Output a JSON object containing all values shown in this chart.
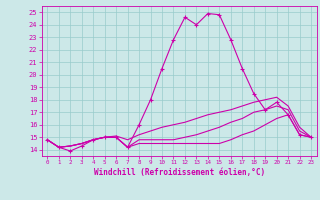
{
  "xlabel": "Windchill (Refroidissement éolien,°C)",
  "bg_color": "#cce8e8",
  "line_color": "#cc00aa",
  "grid_color": "#99cccc",
  "xlim": [
    -0.5,
    23.5
  ],
  "ylim": [
    13.5,
    25.5
  ],
  "xticks": [
    0,
    1,
    2,
    3,
    4,
    5,
    6,
    7,
    8,
    9,
    10,
    11,
    12,
    13,
    14,
    15,
    16,
    17,
    18,
    19,
    20,
    21,
    22,
    23
  ],
  "yticks": [
    14,
    15,
    16,
    17,
    18,
    19,
    20,
    21,
    22,
    23,
    24,
    25
  ],
  "lines": [
    {
      "x": [
        0,
        1,
        2,
        3,
        4,
        5,
        6,
        7,
        8,
        9,
        10,
        11,
        12,
        13,
        14,
        15,
        16,
        17,
        18,
        19,
        20,
        21,
        22,
        23
      ],
      "y": [
        14.8,
        14.2,
        13.9,
        14.3,
        14.8,
        15.0,
        15.0,
        14.2,
        16.0,
        18.0,
        20.5,
        22.8,
        24.6,
        24.0,
        24.9,
        24.8,
        22.8,
        20.5,
        18.5,
        17.2,
        17.8,
        16.8,
        15.2,
        15.0
      ],
      "marker": true
    },
    {
      "x": [
        0,
        1,
        2,
        3,
        4,
        5,
        6,
        7,
        8,
        9,
        10,
        11,
        12,
        13,
        14,
        15,
        16,
        17,
        18,
        19,
        20,
        21,
        22,
        23
      ],
      "y": [
        14.8,
        14.2,
        14.3,
        14.5,
        14.8,
        15.0,
        15.0,
        14.2,
        14.5,
        14.5,
        14.5,
        14.5,
        14.5,
        14.5,
        14.5,
        14.5,
        14.8,
        15.2,
        15.5,
        16.0,
        16.5,
        16.8,
        15.2,
        15.0
      ],
      "marker": false
    },
    {
      "x": [
        0,
        1,
        2,
        3,
        4,
        5,
        6,
        7,
        8,
        9,
        10,
        11,
        12,
        13,
        14,
        15,
        16,
        17,
        18,
        19,
        20,
        21,
        22,
        23
      ],
      "y": [
        14.8,
        14.2,
        14.3,
        14.5,
        14.8,
        15.0,
        15.0,
        14.2,
        14.8,
        14.8,
        14.8,
        14.8,
        15.0,
        15.2,
        15.5,
        15.8,
        16.2,
        16.5,
        17.0,
        17.2,
        17.5,
        17.2,
        15.5,
        15.0
      ],
      "marker": false
    },
    {
      "x": [
        0,
        1,
        2,
        3,
        4,
        5,
        6,
        7,
        8,
        9,
        10,
        11,
        12,
        13,
        14,
        15,
        16,
        17,
        18,
        19,
        20,
        21,
        22,
        23
      ],
      "y": [
        14.8,
        14.2,
        14.3,
        14.5,
        14.8,
        15.0,
        15.1,
        14.8,
        15.2,
        15.5,
        15.8,
        16.0,
        16.2,
        16.5,
        16.8,
        17.0,
        17.2,
        17.5,
        17.8,
        18.0,
        18.2,
        17.5,
        15.8,
        15.0
      ],
      "marker": false
    }
  ]
}
